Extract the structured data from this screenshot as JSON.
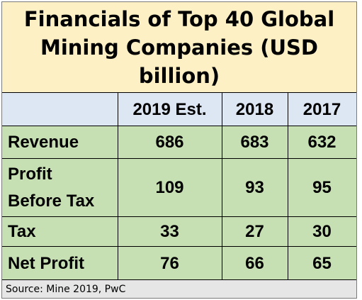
{
  "chart_data": {
    "type": "table",
    "title": [
      "Financials of Top 40 Global",
      "Mining Companies (USD",
      "billion)"
    ],
    "columns": [
      "2019 Est.",
      "2018",
      "2017"
    ],
    "rows": [
      {
        "label": "Revenue",
        "label_lines": [
          "Revenue"
        ],
        "values": [
          "686",
          "683",
          "632"
        ]
      },
      {
        "label": "Profit Before Tax",
        "label_lines": [
          "Profit",
          "Before Tax"
        ],
        "values": [
          "109",
          "93",
          "95"
        ]
      },
      {
        "label": "Tax",
        "label_lines": [
          "Tax"
        ],
        "values": [
          "33",
          "27",
          "30"
        ]
      },
      {
        "label": "Net Profit",
        "label_lines": [
          "Net Profit"
        ],
        "values": [
          "76",
          "66",
          "65"
        ]
      }
    ],
    "source": "Source: Mine 2019, PwC"
  },
  "colors": {
    "title_bg": "#fdf0c4",
    "header_bg": "#dde7f4",
    "body_bg": "#c6e0b3",
    "source_bg": "#e6e6e6"
  }
}
